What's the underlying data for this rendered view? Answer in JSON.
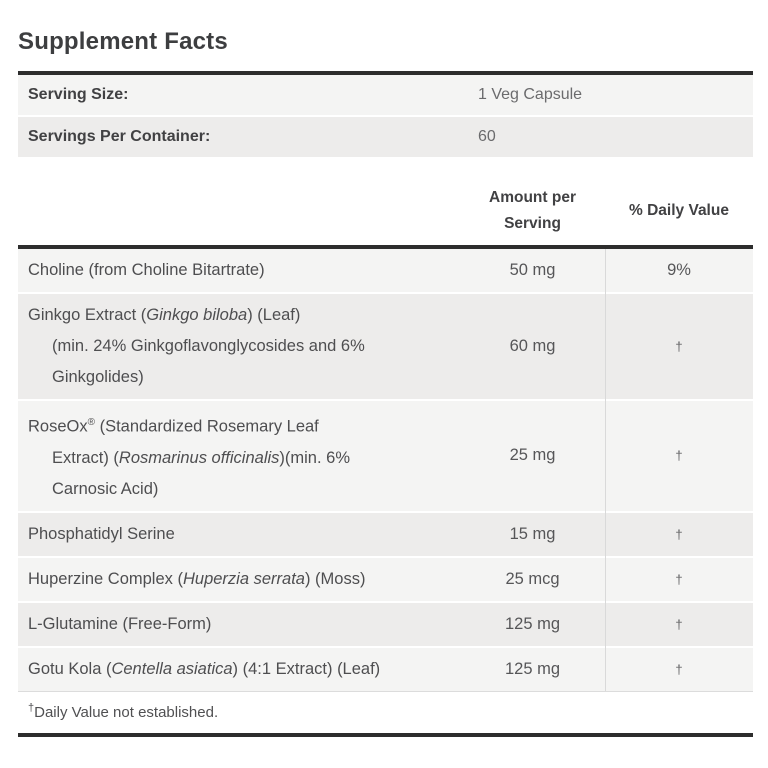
{
  "title": "Supplement Facts",
  "serving_info": {
    "rows": [
      {
        "label": "Serving Size:",
        "value": "1 Veg Capsule"
      },
      {
        "label": "Servings Per Container:",
        "value": "60"
      }
    ]
  },
  "table": {
    "headers": {
      "amount_line1": "Amount per",
      "amount_line2": "Serving",
      "daily_value": "% Daily Value"
    },
    "rows": [
      {
        "name_lines": [
          [
            {
              "t": "Choline (from Choline Bitartrate)"
            }
          ]
        ],
        "amount": "50 mg",
        "daily_value": "9%"
      },
      {
        "name_lines": [
          [
            {
              "t": "Ginkgo Extract ("
            },
            {
              "t": "Ginkgo biloba",
              "s": "i"
            },
            {
              "t": ") (Leaf)"
            }
          ],
          [
            {
              "t": "(min. 24% Ginkgoflavonglycosides and 6%"
            }
          ],
          [
            {
              "t": "Ginkgolides)"
            }
          ]
        ],
        "amount": "60 mg",
        "daily_value": "†"
      },
      {
        "name_lines": [
          [
            {
              "t": "RoseOx"
            },
            {
              "t": "®",
              "s": "sup"
            },
            {
              "t": " (Standardized Rosemary Leaf"
            }
          ],
          [
            {
              "t": "Extract) ("
            },
            {
              "t": "Rosmarinus officinalis",
              "s": "i"
            },
            {
              "t": ")(min. 6%"
            }
          ],
          [
            {
              "t": "Carnosic Acid)"
            }
          ]
        ],
        "amount": "25 mg",
        "daily_value": "†"
      },
      {
        "name_lines": [
          [
            {
              "t": "Phosphatidyl Serine"
            }
          ]
        ],
        "amount": "15 mg",
        "daily_value": "†"
      },
      {
        "name_lines": [
          [
            {
              "t": "Huperzine Complex ("
            },
            {
              "t": "Huperzia serrata",
              "s": "i"
            },
            {
              "t": ") (Moss)"
            }
          ]
        ],
        "amount": "25 mcg",
        "daily_value": "†"
      },
      {
        "name_lines": [
          [
            {
              "t": "L-Glutamine (Free-Form)"
            }
          ]
        ],
        "amount": "125 mg",
        "daily_value": "†"
      },
      {
        "name_lines": [
          [
            {
              "t": "Gotu Kola ("
            },
            {
              "t": "Centella asiatica",
              "s": "i"
            },
            {
              "t": ") (4:1 Extract) (Leaf)"
            }
          ]
        ],
        "amount": "125 mg",
        "daily_value": "†"
      }
    ],
    "footnote": {
      "sup": "†",
      "text": "Daily Value not established."
    }
  },
  "colors": {
    "row_light": "#f4f4f3",
    "row_dark": "#edeceb",
    "rule_dark": "#2d2d2d",
    "column_divider": "#d9d9d9",
    "text_primary": "#414143",
    "text_secondary": "#4e4e50"
  }
}
